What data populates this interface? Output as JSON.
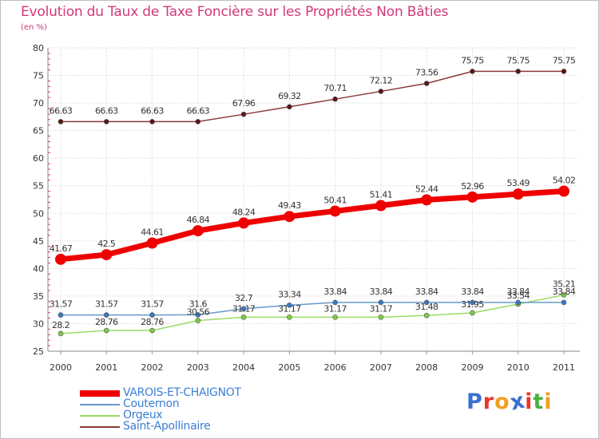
{
  "title": "Evolution du Taux de Taxe Foncière sur les Propriétés Non Bâties",
  "unit_label": "(en %)",
  "chart_data": {
    "type": "line",
    "x": [
      "2000",
      "2001",
      "2002",
      "2003",
      "2004",
      "2005",
      "2006",
      "2007",
      "2008",
      "2009",
      "2010",
      "2011"
    ],
    "ylim": [
      25,
      80
    ],
    "yticks": [
      25,
      30,
      35,
      40,
      45,
      50,
      55,
      60,
      65,
      70,
      75,
      80
    ],
    "grid": true,
    "series": [
      {
        "name": "Saint-Apollinaire",
        "color": "#8a3a3a",
        "marker": "#5a1616",
        "values": [
          66.63,
          66.63,
          66.63,
          66.63,
          67.96,
          69.32,
          70.71,
          72.12,
          73.56,
          75.75,
          75.75,
          75.75
        ],
        "labels": [
          "66.63",
          "66.63",
          "66.63",
          "66.63",
          "67.96",
          "69.32",
          "70.71",
          "72.12",
          "73.56",
          "75.75",
          "75.75",
          "75.75"
        ]
      },
      {
        "name": "VAROIS-ET-CHAIGNOT",
        "color": "#ee0000",
        "marker": "#ee0000",
        "values": [
          41.67,
          42.5,
          44.61,
          46.84,
          48.24,
          49.43,
          50.41,
          51.41,
          52.44,
          52.96,
          53.49,
          54.02
        ],
        "labels": [
          "41.67",
          "42.5",
          "44.61",
          "46.84",
          "48.24",
          "49.43",
          "50.41",
          "51.41",
          "52.44",
          "52.96",
          "53.49",
          "54.02"
        ]
      },
      {
        "name": "Couternon",
        "color": "#6699cc",
        "marker": "#3a78c4",
        "values": [
          31.57,
          31.57,
          31.57,
          31.6,
          32.7,
          33.34,
          33.84,
          33.84,
          33.84,
          33.84,
          33.84,
          33.84
        ],
        "labels": [
          "31.57",
          "31.57",
          "31.57",
          "31.6",
          "32.7",
          "33.34",
          "33.84",
          "33.84",
          "33.84",
          "33.84",
          "33.84",
          "33.84"
        ]
      },
      {
        "name": "Orgeux",
        "color": "#99dd66",
        "marker": "#7ccc44",
        "values": [
          28.2,
          28.76,
          28.76,
          30.56,
          31.17,
          31.17,
          31.17,
          31.17,
          31.48,
          31.95,
          33.54,
          35.21
        ],
        "labels": [
          "28.2",
          "28.76",
          "28.76",
          "30.56",
          "31.17",
          "31.17",
          "31.17",
          "31.17",
          "31.48",
          "31.95",
          "33.54",
          "35.21"
        ]
      }
    ]
  },
  "legend": [
    {
      "label": "VAROIS-ET-CHAIGNOT",
      "color": "#ee0000"
    },
    {
      "label": "Couternon",
      "color": "#6699cc"
    },
    {
      "label": "Orgeux",
      "color": "#99dd66"
    },
    {
      "label": "Saint-Apollinaire",
      "color": "#8a3a3a"
    }
  ],
  "logo": {
    "letters": [
      "P",
      "r",
      "o",
      "x",
      "i",
      "t",
      "i"
    ],
    "colors": [
      "#3b6fd1",
      "#e8362d",
      "#f0a020",
      "#3b6fd1",
      "#e8362d",
      "#4bb043",
      "#f0a020"
    ]
  }
}
